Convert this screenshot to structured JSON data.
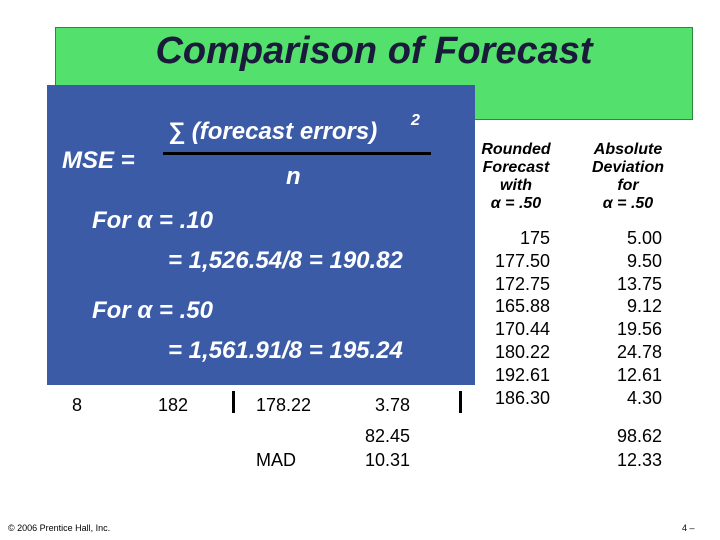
{
  "title": "Comparison of Forecast",
  "formula": {
    "lhs": "MSE =",
    "numerator": "∑ (forecast errors)",
    "exponent": "2",
    "denominator": "n"
  },
  "cases": [
    {
      "label": "For α = .10",
      "result": "= 1,526.54/8 = 190.82"
    },
    {
      "label": "For α = .50",
      "result": "= 1,561.91/8 = 195.24"
    }
  ],
  "left_table": {
    "row": [
      "8",
      "182",
      "178.22",
      "3.78"
    ],
    "sum": "82.45",
    "mad_label": "MAD",
    "mad": "10.31"
  },
  "right_table": {
    "headers": [
      [
        "Rounded",
        "Forecast",
        "with",
        "α = .50"
      ],
      [
        "Absolute",
        "Deviation",
        "for",
        "α = .50"
      ]
    ],
    "rounded_forecast": [
      "175",
      "177.50",
      "172.75",
      "165.88",
      "170.44",
      "180.22",
      "192.61",
      "186.30"
    ],
    "absolute_deviation": [
      "5.00",
      "9.50",
      "13.75",
      "9.12",
      "19.56",
      "24.78",
      "12.61",
      "4.30"
    ],
    "sum": "98.62",
    "mad": "12.33"
  },
  "footer": {
    "copyright": "© 2006 Prentice Hall, Inc.",
    "page": "4 –"
  }
}
